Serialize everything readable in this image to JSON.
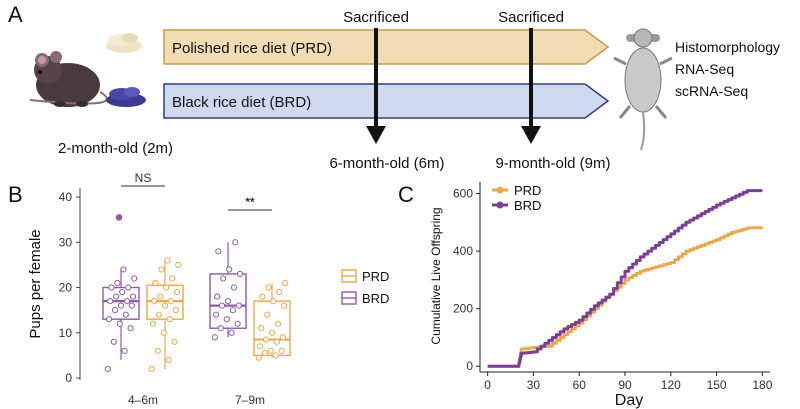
{
  "panel_a": {
    "letter": "A",
    "start_label": "2-month-old (2m)",
    "arrow_prd_label": "Polished rice diet (PRD)",
    "arrow_brd_label": "Black rice diet (BRD)",
    "timepoints": [
      {
        "top": "Sacrificed",
        "bottom": "6-month-old (6m)"
      },
      {
        "top": "Sacrificed",
        "bottom": "9-month-old (9m)"
      }
    ],
    "analyses": [
      "Histomorphology",
      "RNA-Seq",
      "scRNA-Seq"
    ],
    "colors": {
      "prd_fill": "#f2dcb4",
      "prd_stroke": "#c89a4e",
      "brd_fill": "#cfdaf0",
      "brd_stroke": "#2e3f78",
      "timeline": "#111111"
    }
  },
  "panel_b": {
    "letter": "B",
    "legend": [
      "PRD",
      "BRD"
    ],
    "colors": {
      "PRD": "#e8a94f",
      "BRD": "#8e5ca8"
    },
    "chart_data": {
      "type": "box",
      "ylabel": "Pups per female",
      "yticks": [
        0,
        10,
        20,
        30,
        40
      ],
      "ylim": [
        0,
        42
      ],
      "categories": [
        "4–6m",
        "7–9m"
      ],
      "significance": [
        "NS",
        "**"
      ],
      "series": [
        {
          "name": "BRD",
          "boxes": [
            {
              "q1": 13,
              "median": 17,
              "q3": 20,
              "whisker_low": 4,
              "whisker_high": 24,
              "outliers": [
                35.5
              ],
              "points": [
                2,
                6,
                8,
                11,
                12,
                13,
                14,
                15,
                16,
                16,
                17,
                17,
                18,
                18,
                19,
                20,
                20,
                21,
                22,
                24
              ]
            },
            {
              "q1": 11,
              "median": 16,
              "q3": 23,
              "whisker_low": 9,
              "whisker_high": 30,
              "outliers": [],
              "points": [
                9,
                10,
                11,
                12,
                13,
                14,
                15,
                16,
                16,
                17,
                18,
                20,
                22,
                23,
                24,
                28,
                30
              ]
            }
          ]
        },
        {
          "name": "PRD",
          "boxes": [
            {
              "q1": 13,
              "median": 17,
              "q3": 20.5,
              "whisker_low": 2,
              "whisker_high": 26,
              "outliers": [],
              "points": [
                2,
                4,
                6,
                8,
                10,
                12,
                13,
                14,
                15,
                16,
                17,
                17,
                18,
                19,
                20,
                21,
                22,
                24,
                25,
                26
              ]
            },
            {
              "q1": 5,
              "median": 8.5,
              "q3": 17,
              "whisker_low": 4.5,
              "whisker_high": 21,
              "outliers": [],
              "points": [
                4.5,
                5,
                5.5,
                6,
                6,
                7,
                8,
                8.5,
                9,
                10,
                11,
                12,
                14,
                16,
                17,
                18,
                19,
                20,
                21
              ]
            }
          ]
        }
      ]
    }
  },
  "panel_c": {
    "letter": "C",
    "legend": [
      "PRD",
      "BRD"
    ],
    "colors": {
      "PRD": "#e8a94f",
      "BRD": "#7b3f97"
    },
    "chart_data": {
      "type": "line",
      "xlabel": "Day",
      "ylabel": "Cumulative Live Offspring",
      "xticks": [
        0,
        30,
        60,
        90,
        120,
        150,
        180
      ],
      "yticks": [
        0,
        200,
        400,
        600
      ],
      "xlim": [
        -5,
        185
      ],
      "ylim": [
        -20,
        640
      ],
      "series": [
        {
          "name": "PRD",
          "points": [
            [
              0,
              0
            ],
            [
              20,
              0
            ],
            [
              22,
              60
            ],
            [
              30,
              65
            ],
            [
              40,
              70
            ],
            [
              50,
              110
            ],
            [
              60,
              150
            ],
            [
              70,
              200
            ],
            [
              80,
              250
            ],
            [
              90,
              300
            ],
            [
              100,
              330
            ],
            [
              110,
              345
            ],
            [
              120,
              360
            ],
            [
              130,
              400
            ],
            [
              140,
              420
            ],
            [
              150,
              440
            ],
            [
              160,
              465
            ],
            [
              170,
              480
            ],
            [
              180,
              482
            ]
          ]
        },
        {
          "name": "BRD",
          "points": [
            [
              0,
              0
            ],
            [
              20,
              0
            ],
            [
              22,
              45
            ],
            [
              30,
              50
            ],
            [
              40,
              90
            ],
            [
              50,
              130
            ],
            [
              60,
              160
            ],
            [
              70,
              210
            ],
            [
              80,
              250
            ],
            [
              90,
              330
            ],
            [
              100,
              380
            ],
            [
              110,
              420
            ],
            [
              120,
              460
            ],
            [
              130,
              500
            ],
            [
              140,
              530
            ],
            [
              150,
              560
            ],
            [
              160,
              585
            ],
            [
              170,
              610
            ],
            [
              180,
              610
            ]
          ]
        }
      ]
    }
  }
}
